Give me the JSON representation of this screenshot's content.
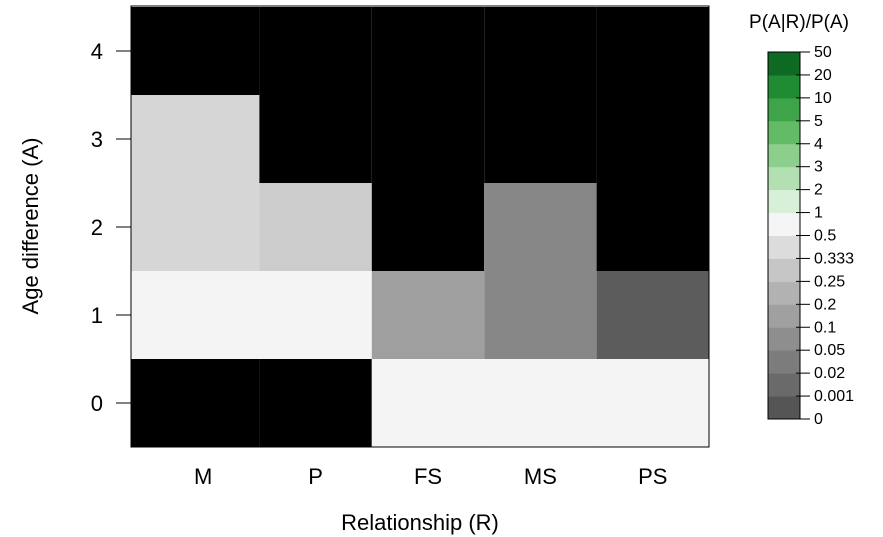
{
  "chart_data": {
    "type": "heatmap",
    "title": "",
    "xlabel": "Relationship (R)",
    "ylabel": "Age difference (A)",
    "x_categories": [
      "M",
      "P",
      "FS",
      "MS",
      "PS"
    ],
    "y_categories": [
      "0",
      "1",
      "2",
      "3",
      "4"
    ],
    "cells": [
      {
        "x": "M",
        "y": "0",
        "ratio_level": "0",
        "color": "#000000"
      },
      {
        "x": "M",
        "y": "1",
        "ratio_level": "0.5",
        "color": "#f4f4f4"
      },
      {
        "x": "M",
        "y": "2",
        "ratio_level": "0.333",
        "color": "#d6d6d6"
      },
      {
        "x": "M",
        "y": "3",
        "ratio_level": "0.333",
        "color": "#d6d6d6"
      },
      {
        "x": "M",
        "y": "4",
        "ratio_level": "0",
        "color": "#000000"
      },
      {
        "x": "P",
        "y": "0",
        "ratio_level": "0",
        "color": "#000000"
      },
      {
        "x": "P",
        "y": "1",
        "ratio_level": "0.5",
        "color": "#f4f4f4"
      },
      {
        "x": "P",
        "y": "2",
        "ratio_level": "0.25",
        "color": "#cccccc"
      },
      {
        "x": "P",
        "y": "3",
        "ratio_level": "0",
        "color": "#000000"
      },
      {
        "x": "P",
        "y": "4",
        "ratio_level": "0",
        "color": "#000000"
      },
      {
        "x": "FS",
        "y": "0",
        "ratio_level": "0.5",
        "color": "#f4f4f4"
      },
      {
        "x": "FS",
        "y": "1",
        "ratio_level": "0.2",
        "color": "#9f9f9f"
      },
      {
        "x": "FS",
        "y": "2",
        "ratio_level": "0",
        "color": "#000000"
      },
      {
        "x": "FS",
        "y": "3",
        "ratio_level": "0",
        "color": "#000000"
      },
      {
        "x": "FS",
        "y": "4",
        "ratio_level": "0",
        "color": "#000000"
      },
      {
        "x": "MS",
        "y": "0",
        "ratio_level": "0.5",
        "color": "#f4f4f4"
      },
      {
        "x": "MS",
        "y": "1",
        "ratio_level": "0.1",
        "color": "#878787"
      },
      {
        "x": "MS",
        "y": "2",
        "ratio_level": "0.1",
        "color": "#878787"
      },
      {
        "x": "MS",
        "y": "3",
        "ratio_level": "0",
        "color": "#000000"
      },
      {
        "x": "MS",
        "y": "4",
        "ratio_level": "0",
        "color": "#000000"
      },
      {
        "x": "PS",
        "y": "0",
        "ratio_level": "0.5",
        "color": "#f4f4f4"
      },
      {
        "x": "PS",
        "y": "1",
        "ratio_level": "0.05",
        "color": "#5c5c5c"
      },
      {
        "x": "PS",
        "y": "2",
        "ratio_level": "0",
        "color": "#000000"
      },
      {
        "x": "PS",
        "y": "3",
        "ratio_level": "0",
        "color": "#000000"
      },
      {
        "x": "PS",
        "y": "4",
        "ratio_level": "0",
        "color": "#000000"
      }
    ],
    "colorbar": {
      "title": "P(A|R)/P(A)",
      "labels": [
        "0",
        "0.001",
        "0.02",
        "0.05",
        "0.1",
        "0.2",
        "0.25",
        "0.333",
        "0.5",
        "1",
        "2",
        "3",
        "4",
        "5",
        "10",
        "20",
        "50"
      ],
      "colors": [
        "#3a3a3a",
        "#555555",
        "#6a6a6a",
        "#7c7c7c",
        "#8e8e8e",
        "#a0a0a0",
        "#b2b2b2",
        "#c6c6c6",
        "#dcdcdc",
        "#f5f5f5",
        "#d8efd8",
        "#b3e0b3",
        "#8ccf8c",
        "#63bb66",
        "#3fa34a",
        "#1f8b32",
        "#0e6a22"
      ]
    },
    "grid": false,
    "legend_position": "right"
  }
}
